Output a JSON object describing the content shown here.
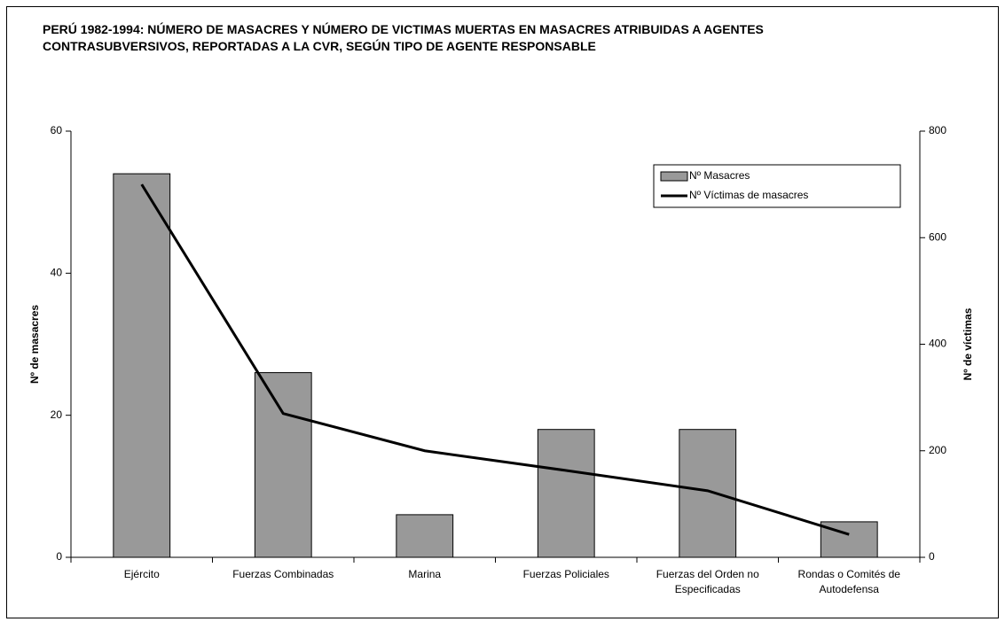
{
  "chart_data": {
    "type": "bar",
    "title": "PERÚ 1982-1994: NÚMERO DE MASACRES Y NÚMERO DE VICTIMAS MUERTAS EN MASACRES ATRIBUIDAS A AGENTES CONTRASUBVERSIVOS, REPORTADAS A LA CVR, SEGÚN TIPO DE AGENTE RESPONSABLE",
    "y_label": "Nº de masacres",
    "y2_label": "Nº de víctimas",
    "categories": [
      "Ejército",
      "Fuerzas Combinadas",
      "Marina",
      "Fuerzas Policiales",
      "Fuerzas del Orden no Especificadas",
      "Rondas o Comités de Autodefensa"
    ],
    "series": [
      {
        "name": "Nº Masacres",
        "type": "bar",
        "color": "#999999",
        "values": [
          54,
          26,
          6,
          18,
          18,
          5
        ]
      },
      {
        "name": "Nº Víctimas de masacres",
        "type": "line",
        "axis": "y2",
        "color": "#000000",
        "values": [
          700,
          270,
          200,
          163,
          125,
          43
        ]
      }
    ],
    "ylim": [
      0,
      60
    ],
    "yticks": [
      0,
      20,
      40,
      60
    ],
    "y2lim": [
      0,
      800
    ],
    "y2ticks": [
      0,
      200,
      400,
      600,
      800
    ],
    "legend": "top-right"
  }
}
